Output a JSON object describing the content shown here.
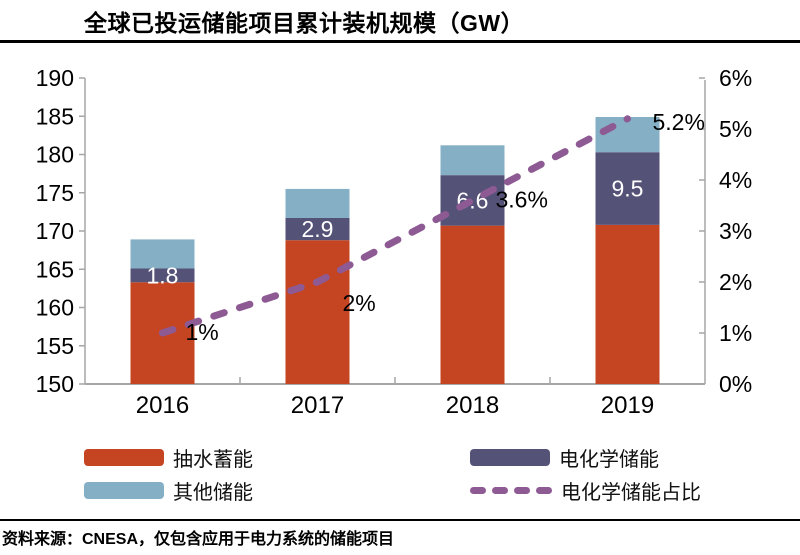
{
  "page": {
    "source_note": "资料来源：CNESA，仅包含应用于电力系统的储能项目"
  },
  "chart_data": {
    "type": "bar",
    "variant": "stacked-bars-with-dashed-line-overlay",
    "title": "全球已投运储能项目累计装机规模（GW）",
    "categories": [
      "2016",
      "2017",
      "2018",
      "2019"
    ],
    "series": [
      {
        "name": "抽水蓄能",
        "role": "stack-base-absolute",
        "color": "#C54422",
        "values": [
          163.3,
          168.8,
          170.7,
          170.8
        ]
      },
      {
        "name": "电化学储能",
        "role": "stack-increment",
        "color": "#555277",
        "values": [
          1.8,
          2.9,
          6.6,
          9.5
        ],
        "data_labels": [
          "1.8",
          "2.9",
          "6.6",
          "9.5"
        ]
      },
      {
        "name": "其他储能",
        "role": "stack-increment",
        "color": "#85AFC5",
        "values": [
          3.8,
          3.8,
          3.9,
          4.6
        ]
      }
    ],
    "stack_totals": [
      168.9,
      175.5,
      181.2,
      184.9
    ],
    "line_series": {
      "name": "电化学储能占比",
      "color": "#8E5A93",
      "style": "dashed",
      "axis": "right",
      "values": [
        1.0,
        2.0,
        3.6,
        5.2
      ],
      "data_labels": [
        "1%",
        "2%",
        "3.6%",
        "5.2%"
      ]
    },
    "left_axis": {
      "min": 150,
      "max": 190,
      "step": 5,
      "tick_labels": [
        "150",
        "155",
        "160",
        "165",
        "170",
        "175",
        "180",
        "185",
        "190"
      ]
    },
    "right_axis": {
      "min": 0,
      "max": 6,
      "step": 1,
      "tick_labels": [
        "0%",
        "1%",
        "2%",
        "3%",
        "4%",
        "5%",
        "6%"
      ]
    },
    "grid": "off",
    "legend_position": "bottom"
  },
  "legend": {
    "items": [
      {
        "label": "抽水蓄能",
        "swatch": "fill",
        "color": "#C54422"
      },
      {
        "label": "其他储能",
        "swatch": "fill",
        "color": "#85AFC5"
      },
      {
        "label": "电化学储能",
        "swatch": "fill",
        "color": "#555277"
      },
      {
        "label": "电化学储能占比",
        "swatch": "dashed",
        "color": "#8E5A93"
      }
    ]
  },
  "colors": {
    "bar_pumped": "#C54422",
    "bar_electrochemical": "#555277",
    "bar_other": "#85AFC5",
    "line_share": "#8E5A93",
    "axis": "#A6A6A6",
    "text": "#000000",
    "bar_label": "#FFFFFF"
  }
}
